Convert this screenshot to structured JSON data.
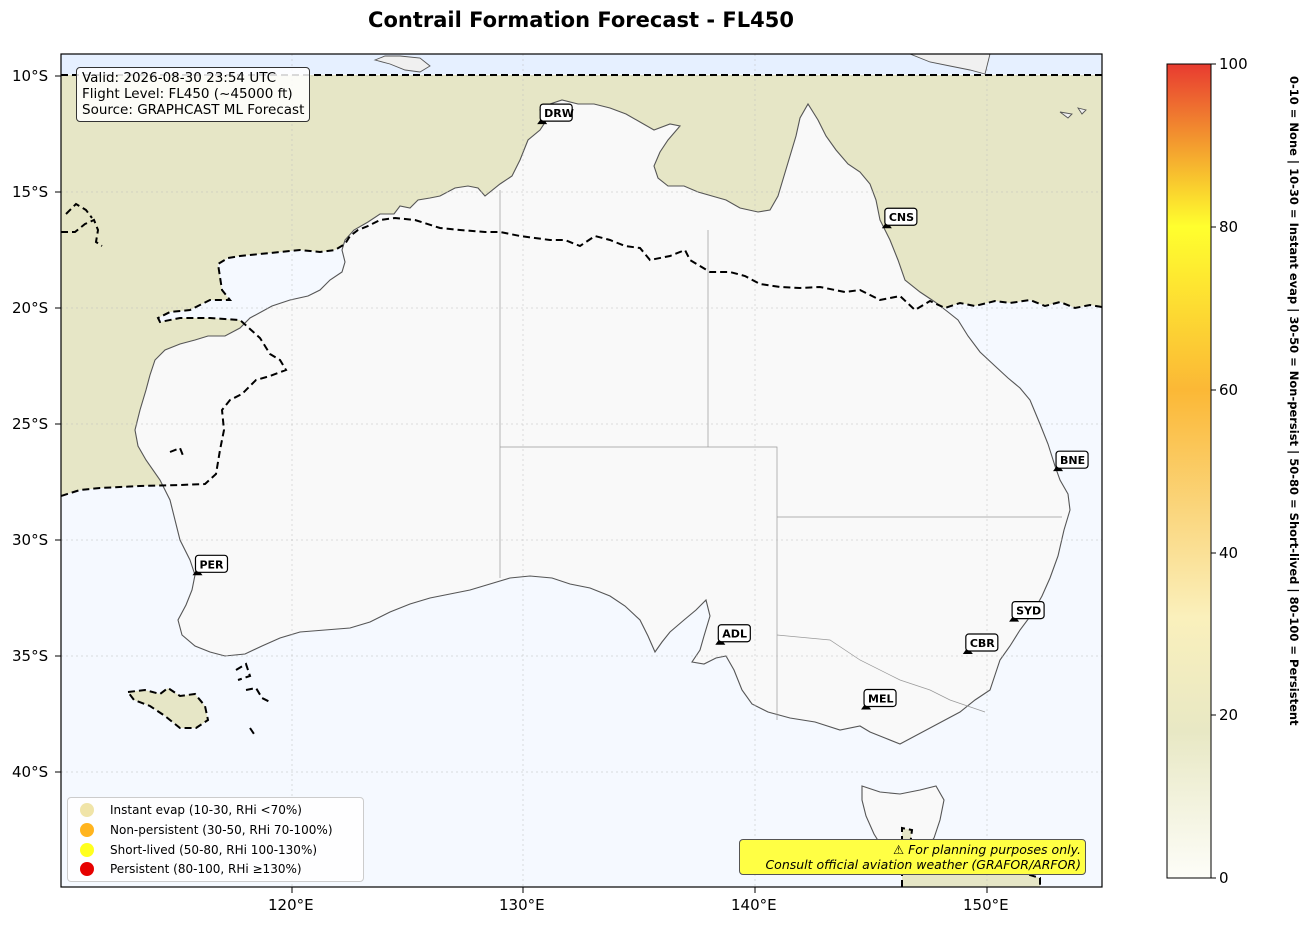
{
  "title": "Contrail Formation Forecast - FL450",
  "info": {
    "valid": "Valid: 2026-08-30 23:54 UTC",
    "flight_level": "Flight Level: FL450 (~45000 ft)",
    "source": "Source: GRAPHCAST ML Forecast"
  },
  "axes": {
    "lat_labels": [
      "10°S",
      "15°S",
      "20°S",
      "25°S",
      "30°S",
      "35°S",
      "40°S"
    ],
    "lon_labels": [
      "120°E",
      "130°E",
      "140°E",
      "150°E"
    ]
  },
  "airports": [
    {
      "code": "DRW",
      "lon": 130.8,
      "lat": -12.4
    },
    {
      "code": "CNS",
      "lon": 145.7,
      "lat": -16.9
    },
    {
      "code": "BNE",
      "lon": 153.1,
      "lat": -27.4
    },
    {
      "code": "PER",
      "lon": 115.9,
      "lat": -31.9
    },
    {
      "code": "ADL",
      "lon": 138.5,
      "lat": -34.9
    },
    {
      "code": "SYD",
      "lon": 151.2,
      "lat": -33.9
    },
    {
      "code": "CBR",
      "lon": 149.2,
      "lat": -35.3
    },
    {
      "code": "MEL",
      "lon": 144.8,
      "lat": -37.7
    }
  ],
  "legend": [
    {
      "label": "Instant evap (10-30, RHi <70%)",
      "color": "#f0e4a8"
    },
    {
      "label": "Non-persistent (30-50, RHi 70-100%)",
      "color": "#ffb41e"
    },
    {
      "label": "Short-lived (50-80, RHi 100-130%)",
      "color": "#ffff1e"
    },
    {
      "label": "Persistent (80-100, RHi ≥130%)",
      "color": "#e60000"
    }
  ],
  "warning": {
    "line1": "⚠ For planning purposes only.",
    "line2": "Consult official aviation weather (GRAFOR/ARFOR)"
  },
  "colorbar": {
    "ticks": [
      "0",
      "20",
      "40",
      "60",
      "80",
      "100"
    ],
    "caption": "0-10 = None  |  10-30 = Instant evap  |  30-50 = Non-persist  |  50-80 = Short-lived  |  80-100 = Persistent",
    "stops": [
      "#fdfdf8",
      "#e8e8c4",
      "#faf0bc",
      "#fbb836",
      "#ffff2e",
      "#e83b30"
    ]
  },
  "colors": {
    "ocean": "#f5f9ff",
    "land": "#f9f9f9",
    "contrail_zone": "#e8e8c8",
    "north_band": "#e6f0ff"
  }
}
